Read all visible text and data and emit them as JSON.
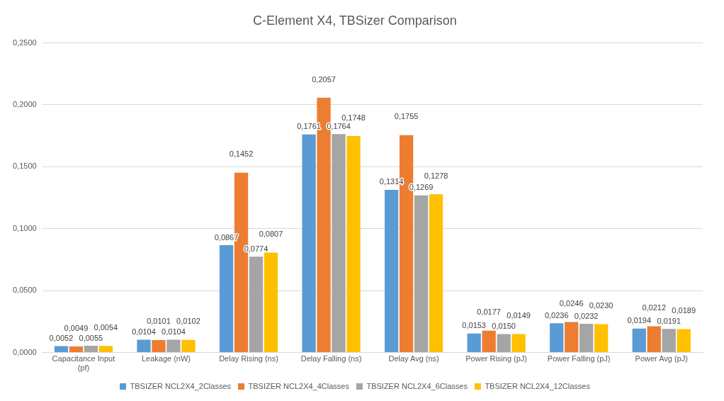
{
  "chart_data": {
    "type": "bar",
    "title": "C-Element X4, TBSizer Comparison",
    "categories": [
      "Capacitance Input (pf)",
      "Leakage (nW)",
      "Delay Rising (ns)",
      "Delay Falling (ns)",
      "Delay Avg (ns)",
      "Power Rising (pJ)",
      "Power Falling (pJ)",
      "Power Avg (pJ)"
    ],
    "series": [
      {
        "name": "TBSIZER NCL2X4_2Classes",
        "color": "#5b9bd5",
        "values": [
          0.0052,
          0.0104,
          0.0867,
          0.1761,
          0.1314,
          0.0153,
          0.0236,
          0.0194
        ],
        "value_labels": [
          "0,0052",
          "0,0104",
          "0,0867",
          "0,1761",
          "0,1314",
          "0,0153",
          "0,0236",
          "0,0194"
        ]
      },
      {
        "name": "TBSIZER NCL2X4_4Classes",
        "color": "#ed7d31",
        "values": [
          0.0049,
          0.0101,
          0.1452,
          0.2057,
          0.1755,
          0.0177,
          0.0246,
          0.0212
        ],
        "value_labels": [
          "0,0049",
          "0,0101",
          "0,1452",
          "0,2057",
          "0,1755",
          "0,0177",
          "0,0246",
          "0,0212"
        ]
      },
      {
        "name": "TBSIZER NCL2X4_6Classes",
        "color": "#a5a5a5",
        "values": [
          0.0055,
          0.0104,
          0.0774,
          0.1764,
          0.1269,
          0.015,
          0.0232,
          0.0191
        ],
        "value_labels": [
          "0,0055",
          "0,0104",
          "0,0774",
          "0,1764",
          "0,1269",
          "0,0150",
          "0,0232",
          "0,0191"
        ]
      },
      {
        "name": "TBSIZER NCL2X4_12Classes",
        "color": "#ffc000",
        "values": [
          0.0054,
          0.0102,
          0.0807,
          0.1748,
          0.1278,
          0.0149,
          0.023,
          0.0189
        ],
        "value_labels": [
          "0,0054",
          "0,0102",
          "0,0807",
          "0,1748",
          "0,1278",
          "0,0149",
          "0,0230",
          "0,0189"
        ]
      }
    ],
    "ylim": [
      0,
      0.25
    ],
    "yticks": [
      {
        "value": 0,
        "label": "0,0000"
      },
      {
        "value": 0.05,
        "label": "0,0500"
      },
      {
        "value": 0.1,
        "label": "0,1000"
      },
      {
        "value": 0.15,
        "label": "0,1500"
      },
      {
        "value": 0.2,
        "label": "0,2000"
      },
      {
        "value": 0.25,
        "label": "0,2500"
      }
    ],
    "grid": "y",
    "legend": "bottom"
  }
}
